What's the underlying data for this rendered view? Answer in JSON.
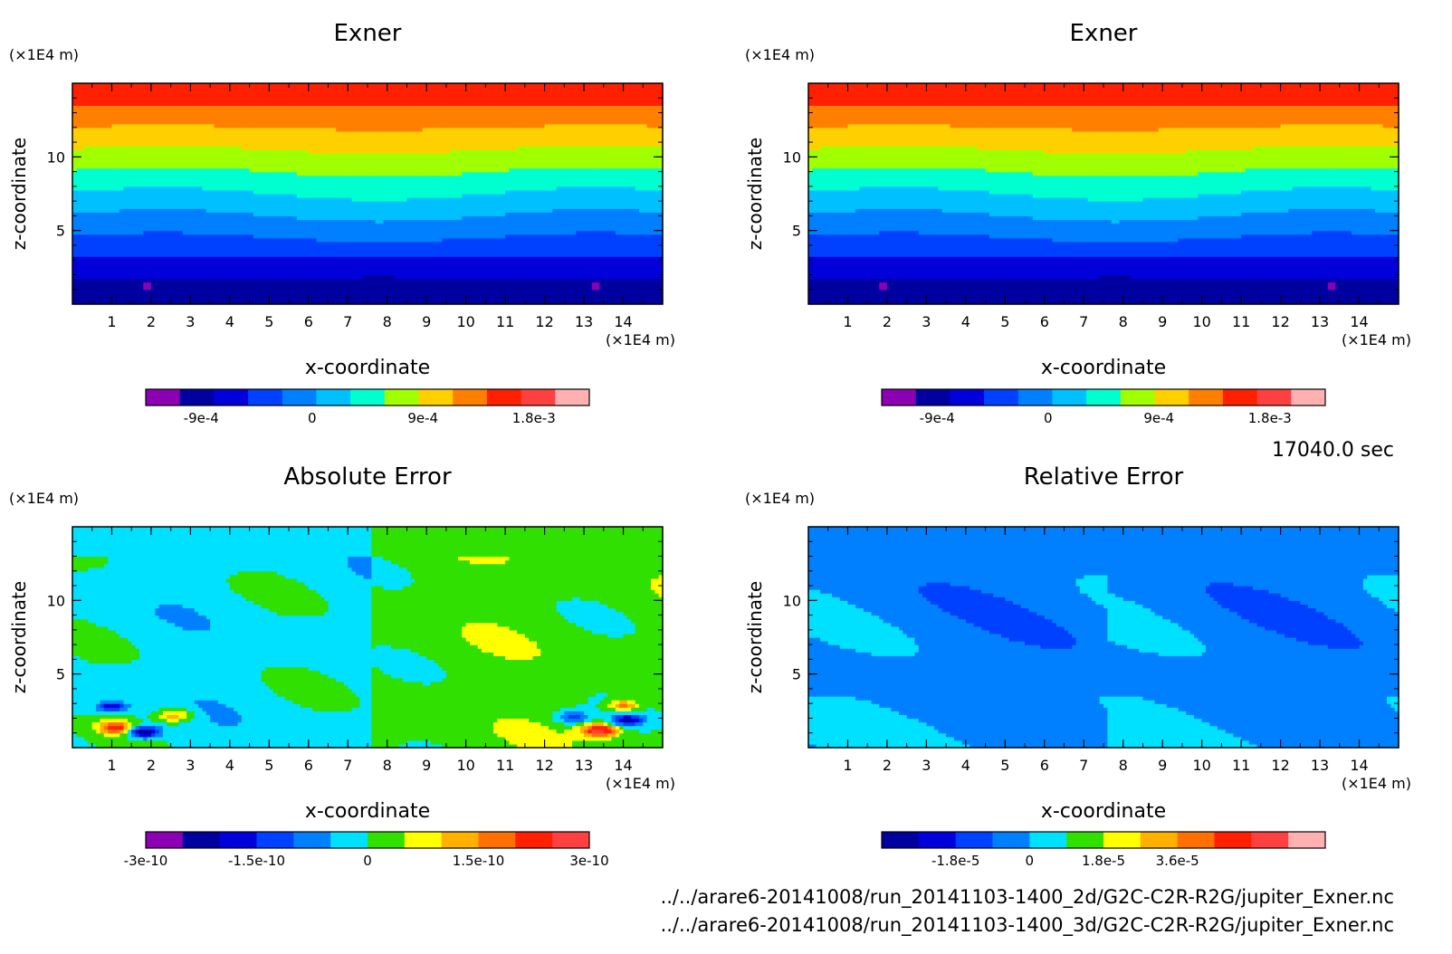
{
  "footer": {
    "time_label": "17040.0 sec",
    "file_1": "../../arare6-20141008/run_20141103-1400_2d/G2C-C2R-R2G/jupiter_Exner.nc",
    "file_2": "../../arare6-20141008/run_20141103-1400_3d/G2C-C2R-R2G/jupiter_Exner.nc"
  },
  "chart_data": [
    {
      "type": "heatmap",
      "title": "Exner",
      "xlabel": "x-coordinate",
      "ylabel": "z-coordinate",
      "x_unit": "(×1E4 m)",
      "y_unit": "(×1E4 m)",
      "xlim": [
        0,
        15
      ],
      "ylim": [
        0,
        15
      ],
      "xticks": [
        "1",
        "2",
        "3",
        "4",
        "5",
        "6",
        "7",
        "8",
        "9",
        "10",
        "11",
        "12",
        "13",
        "14"
      ],
      "yticks": [
        "5",
        "10"
      ],
      "field": "exner",
      "colorbar": {
        "colors": [
          "#8c00b4",
          "#0000a0",
          "#0000dc",
          "#0040ff",
          "#0080ff",
          "#00c0ff",
          "#00ffd0",
          "#a0ff00",
          "#ffd000",
          "#ff8000",
          "#ff2000",
          "#ff4040",
          "#ffb0b0"
        ],
        "tick_labels": [
          "-9e-4",
          "0",
          "9e-4",
          "1.8e-3"
        ],
        "tick_values": [
          -0.0009,
          0,
          0.0009,
          0.0018
        ],
        "range": [
          -0.00135,
          0.00225
        ]
      }
    },
    {
      "type": "heatmap",
      "title": "Exner",
      "xlabel": "x-coordinate",
      "ylabel": "z-coordinate",
      "x_unit": "(×1E4 m)",
      "y_unit": "(×1E4 m)",
      "xlim": [
        0,
        15
      ],
      "ylim": [
        0,
        15
      ],
      "xticks": [
        "1",
        "2",
        "3",
        "4",
        "5",
        "6",
        "7",
        "8",
        "9",
        "10",
        "11",
        "12",
        "13",
        "14"
      ],
      "yticks": [
        "5",
        "10"
      ],
      "field": "exner",
      "colorbar": {
        "colors": [
          "#8c00b4",
          "#0000a0",
          "#0000dc",
          "#0040ff",
          "#0080ff",
          "#00c0ff",
          "#00ffd0",
          "#a0ff00",
          "#ffd000",
          "#ff8000",
          "#ff2000",
          "#ff4040",
          "#ffb0b0"
        ],
        "tick_labels": [
          "-9e-4",
          "0",
          "9e-4",
          "1.8e-3"
        ],
        "tick_values": [
          -0.0009,
          0,
          0.0009,
          0.0018
        ],
        "range": [
          -0.00135,
          0.00225
        ]
      }
    },
    {
      "type": "heatmap",
      "title": "Absolute Error",
      "xlabel": "x-coordinate",
      "ylabel": "z-coordinate",
      "x_unit": "(×1E4 m)",
      "y_unit": "(×1E4 m)",
      "xlim": [
        0,
        15
      ],
      "ylim": [
        0,
        15
      ],
      "xticks": [
        "1",
        "2",
        "3",
        "4",
        "5",
        "6",
        "7",
        "8",
        "9",
        "10",
        "11",
        "12",
        "13",
        "14"
      ],
      "yticks": [
        "5",
        "10"
      ],
      "field": "abs_error",
      "colorbar": {
        "colors": [
          "#8c00b4",
          "#0000a0",
          "#0000dc",
          "#0040ff",
          "#0080ff",
          "#00e0ff",
          "#30e000",
          "#ffff00",
          "#ffb000",
          "#ff7000",
          "#ff2000",
          "#ff4040"
        ],
        "tick_labels": [
          "-3e-10",
          "-1.5e-10",
          "0",
          "1.5e-10",
          "3e-10"
        ],
        "tick_values": [
          -3e-10,
          -1.5e-10,
          0,
          1.5e-10,
          3e-10
        ],
        "range": [
          -3e-10,
          3e-10
        ]
      }
    },
    {
      "type": "heatmap",
      "title": "Relative Error",
      "xlabel": "x-coordinate",
      "ylabel": "z-coordinate",
      "x_unit": "(×1E4 m)",
      "y_unit": "(×1E4 m)",
      "xlim": [
        0,
        15
      ],
      "ylim": [
        0,
        15
      ],
      "xticks": [
        "1",
        "2",
        "3",
        "4",
        "5",
        "6",
        "7",
        "8",
        "9",
        "10",
        "11",
        "12",
        "13",
        "14"
      ],
      "yticks": [
        "5",
        "10"
      ],
      "field": "rel_error",
      "colorbar": {
        "colors": [
          "#0000a0",
          "#0000dc",
          "#0040ff",
          "#0080ff",
          "#00e0ff",
          "#30e000",
          "#ffff00",
          "#ffb000",
          "#ff7000",
          "#ff2000",
          "#ff4040",
          "#ffb0b0"
        ],
        "tick_labels": [
          "-1.8e-5",
          "0",
          "1.8e-5",
          "3.6e-5"
        ],
        "tick_values": [
          -1.8e-05,
          0,
          1.8e-05,
          3.6e-05
        ],
        "range": [
          -3.6e-05,
          7.2e-05
        ]
      }
    }
  ]
}
